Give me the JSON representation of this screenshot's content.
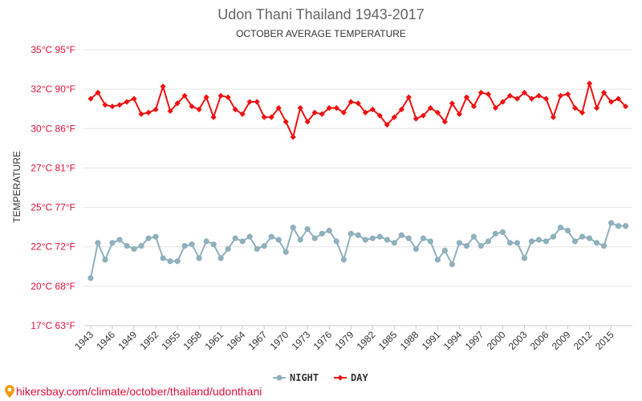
{
  "chart_data": {
    "type": "line",
    "title": "Udon Thani Thailand 1943-2017",
    "subtitle": "OCTOBER AVERAGE TEMPERATURE",
    "ylabel": "TEMPERATURE",
    "y_ticks": [
      "17°C 63°F",
      "20°C 68°F",
      "22°C 72°F",
      "25°C 77°F",
      "27°C 81°F",
      "30°C 86°F",
      "32°C 90°F",
      "35°C 95°F"
    ],
    "x_ticks": [
      "1943",
      "1946",
      "1949",
      "1952",
      "1955",
      "1958",
      "1961",
      "1964",
      "1967",
      "1970",
      "1973",
      "1976",
      "1979",
      "1982",
      "1985",
      "1988",
      "1991",
      "1994",
      "1997",
      "2000",
      "2003",
      "2006",
      "2009",
      "2012",
      "2015"
    ],
    "x": [
      1943,
      1944,
      1945,
      1946,
      1947,
      1948,
      1949,
      1950,
      1951,
      1952,
      1953,
      1954,
      1955,
      1956,
      1957,
      1958,
      1959,
      1960,
      1961,
      1962,
      1963,
      1964,
      1965,
      1966,
      1967,
      1968,
      1969,
      1970,
      1971,
      1972,
      1973,
      1974,
      1975,
      1976,
      1977,
      1978,
      1979,
      1980,
      1981,
      1982,
      1983,
      1984,
      1985,
      1986,
      1987,
      1988,
      1989,
      1990,
      1991,
      1992,
      1993,
      1994,
      1995,
      1996,
      1997,
      1998,
      1999,
      2000,
      2001,
      2002,
      2003,
      2004,
      2005,
      2006,
      2007,
      2008,
      2009,
      2010,
      2011,
      2012,
      2013,
      2014,
      2015,
      2016,
      2017
    ],
    "series": [
      {
        "name": "NIGHT",
        "color": "#8fb0bc",
        "values": [
          20.1,
          22.4,
          21.3,
          22.4,
          22.6,
          22.2,
          22.0,
          22.2,
          22.7,
          22.8,
          21.4,
          21.2,
          21.2,
          22.2,
          22.3,
          21.4,
          22.5,
          22.3,
          21.4,
          22.0,
          22.7,
          22.5,
          22.8,
          22.0,
          22.2,
          22.8,
          22.6,
          21.8,
          23.4,
          22.6,
          23.3,
          22.7,
          23.0,
          23.2,
          22.5,
          21.3,
          23.0,
          22.9,
          22.6,
          22.7,
          22.8,
          22.6,
          22.4,
          22.9,
          22.7,
          22.0,
          22.7,
          22.5,
          21.3,
          21.9,
          21.0,
          22.4,
          22.2,
          22.8,
          22.2,
          22.5,
          23.0,
          23.1,
          22.4,
          22.4,
          21.4,
          22.5,
          22.6,
          22.5,
          22.8,
          23.4,
          23.2,
          22.5,
          22.8,
          22.7,
          22.4,
          22.2,
          23.7,
          23.5,
          23.5
        ],
        "y_range": [
          17,
          35
        ]
      },
      {
        "name": "DAY",
        "color": "#ee1111",
        "values": [
          31.8,
          32.2,
          31.4,
          31.3,
          31.4,
          31.6,
          31.8,
          30.8,
          30.9,
          31.1,
          32.6,
          31.0,
          31.5,
          32.0,
          31.3,
          31.1,
          31.9,
          30.6,
          32.0,
          31.9,
          31.1,
          30.8,
          31.6,
          31.6,
          30.6,
          30.6,
          31.2,
          30.3,
          29.3,
          31.2,
          30.3,
          30.9,
          30.8,
          31.2,
          31.2,
          30.9,
          31.6,
          31.5,
          30.9,
          31.1,
          30.7,
          30.1,
          30.6,
          31.1,
          31.9,
          30.5,
          30.7,
          31.2,
          30.9,
          30.3,
          31.5,
          30.8,
          31.9,
          31.3,
          32.2,
          32.1,
          31.2,
          31.6,
          32.0,
          31.8,
          32.2,
          31.8,
          32.0,
          31.8,
          30.6,
          32.0,
          32.1,
          31.2,
          30.9,
          32.8,
          31.2,
          32.2,
          31.6,
          31.8,
          31.3
        ],
        "y_range": [
          17,
          35
        ]
      }
    ],
    "ylim": [
      17,
      35
    ],
    "grid": true,
    "legend": "bottom-center"
  },
  "source_text": "hikersbay.com/climate/october/thailand/udonthani",
  "icon": "map-pin-icon"
}
